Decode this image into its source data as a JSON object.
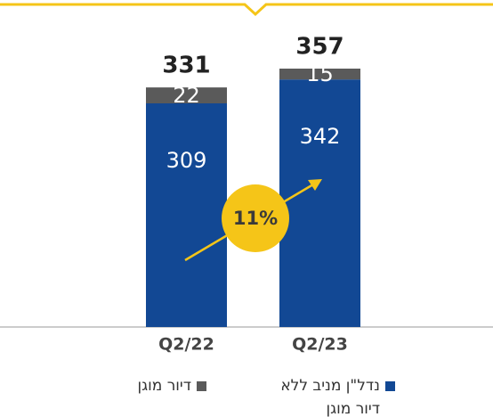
{
  "chart_data": {
    "type": "stacked_bar",
    "categories": [
      "Q2/22",
      "Q2/23"
    ],
    "series": [
      {
        "name": "נדל\"ן מניב ללא דיור מוגן",
        "color": "#124894",
        "values": [
          309,
          342
        ]
      },
      {
        "name": "דיור מוגן",
        "color": "#5a5a5a",
        "values": [
          22,
          15
        ]
      }
    ],
    "totals": [
      331,
      357
    ],
    "annotation": "11%"
  }
}
